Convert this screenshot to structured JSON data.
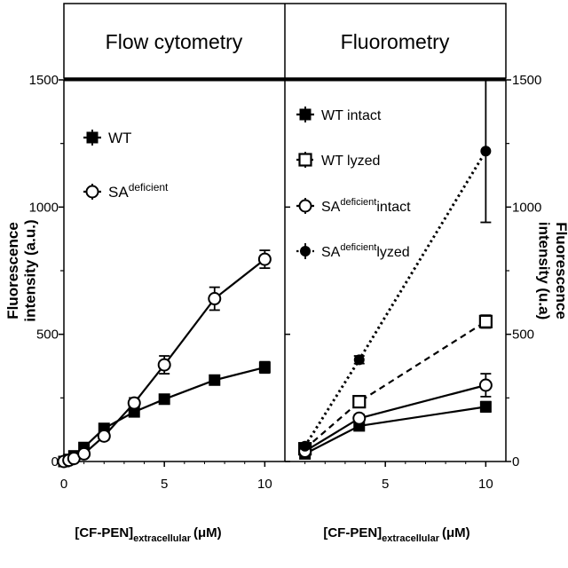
{
  "chart_data": [
    {
      "type": "line",
      "panel_title": "Flow cytometry",
      "ylabel": "Fluorescence intensity (a.u.)",
      "xlabel_main": "[CF-PEN]",
      "xlabel_sub": "extracellular",
      "xlabel_unit": "(μM)",
      "xlim": [
        0,
        11
      ],
      "ylim": [
        0,
        1500
      ],
      "x_ticks": [
        "0",
        "5",
        "10"
      ],
      "y_ticks": [
        "0",
        "500",
        "1000",
        "1500"
      ],
      "legend_position": "top-left",
      "series": [
        {
          "name": "WT",
          "name_sup": "",
          "marker": "filled-square",
          "style": "solid",
          "x": [
            0,
            0.25,
            0.5,
            1,
            2,
            3.5,
            5,
            7.5,
            10
          ],
          "y": [
            0,
            8,
            22,
            55,
            130,
            195,
            245,
            320,
            370
          ],
          "err": [
            0,
            5,
            8,
            10,
            12,
            12,
            15,
            18,
            22
          ]
        },
        {
          "name": "SA",
          "name_sup": "deficient",
          "marker": "open-circle",
          "style": "solid",
          "x": [
            0,
            0.25,
            0.5,
            1,
            2,
            3.5,
            5,
            7.5,
            10
          ],
          "y": [
            0,
            5,
            12,
            30,
            100,
            230,
            380,
            640,
            795
          ],
          "err": [
            0,
            5,
            8,
            10,
            15,
            20,
            35,
            45,
            35
          ]
        }
      ]
    },
    {
      "type": "line",
      "panel_title": "Fluorometry",
      "ylabel": "Fluorescence intensity (u.a)",
      "xlabel_main": "[CF-PEN]",
      "xlabel_sub": "extracellular",
      "xlabel_unit": "(μM)",
      "xlim": [
        0,
        11
      ],
      "ylim": [
        0,
        1500
      ],
      "x_ticks": [
        "5",
        "10"
      ],
      "y_ticks": [
        "0",
        "500",
        "1000",
        "1500"
      ],
      "legend_position": "top-left",
      "series": [
        {
          "name": "WT intact",
          "name_pre": "WT",
          "name_sup": "",
          "name_post": " intact",
          "marker": "filled-square",
          "style": "solid",
          "x": [
            1,
            3.7,
            10
          ],
          "y": [
            30,
            140,
            215
          ],
          "err": [
            10,
            12,
            20
          ]
        },
        {
          "name": "WT lyzed",
          "name_pre": "WT",
          "name_sup": "",
          "name_post": " lyzed",
          "marker": "open-square",
          "style": "dashed",
          "x": [
            1,
            3.7,
            10
          ],
          "y": [
            50,
            235,
            550
          ],
          "err": [
            10,
            15,
            25
          ]
        },
        {
          "name": "SAdeficient intact",
          "name_pre": "SA",
          "name_sup": "deficient",
          "name_post": "intact",
          "marker": "open-circle",
          "style": "solid",
          "x": [
            1,
            3.7,
            10
          ],
          "y": [
            40,
            170,
            300
          ],
          "err": [
            10,
            15,
            45
          ]
        },
        {
          "name": "SAdeficient lyzed",
          "name_pre": "SA",
          "name_sup": "deficient",
          "name_post": "lyzed",
          "marker": "filled-circle",
          "style": "dotted",
          "x": [
            1,
            3.7,
            10
          ],
          "y": [
            60,
            400,
            1220
          ],
          "err": [
            10,
            15,
            280
          ]
        }
      ]
    }
  ]
}
